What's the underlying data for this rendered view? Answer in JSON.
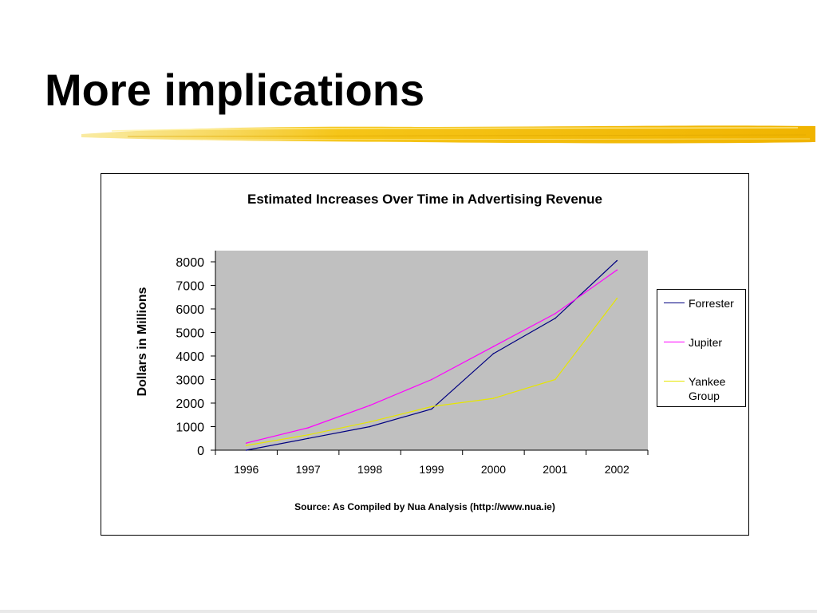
{
  "slide": {
    "title": "More implications"
  },
  "chart_data": {
    "type": "line",
    "title": "Estimated Increases Over Time in Advertising Revenue",
    "xlabel": "",
    "ylabel": "Dollars in Millions",
    "ylim": [
      0,
      8000
    ],
    "yticks": [
      "0",
      "1000",
      "2000",
      "3000",
      "4000",
      "5000",
      "6000",
      "7000",
      "8000"
    ],
    "categories": [
      "1996",
      "1997",
      "1998",
      "1999",
      "2000",
      "2001",
      "2002"
    ],
    "series": [
      {
        "name": "Forrester",
        "color": "#000080",
        "values": [
          0,
          500,
          1000,
          1750,
          4100,
          5600,
          8050
        ]
      },
      {
        "name": "Jupiter",
        "color": "#ff00ff",
        "values": [
          300,
          950,
          1900,
          3000,
          4400,
          5800,
          7650
        ]
      },
      {
        "name": "Yankee Group",
        "color": "#e6e600",
        "values": [
          200,
          650,
          1200,
          1850,
          2200,
          3000,
          6450
        ]
      }
    ],
    "plot_background": "#c0c0c0",
    "grid": false,
    "legend_position": "right",
    "source": "Source:  As Compiled by Nua Analysis (http://www.nua.ie)"
  }
}
